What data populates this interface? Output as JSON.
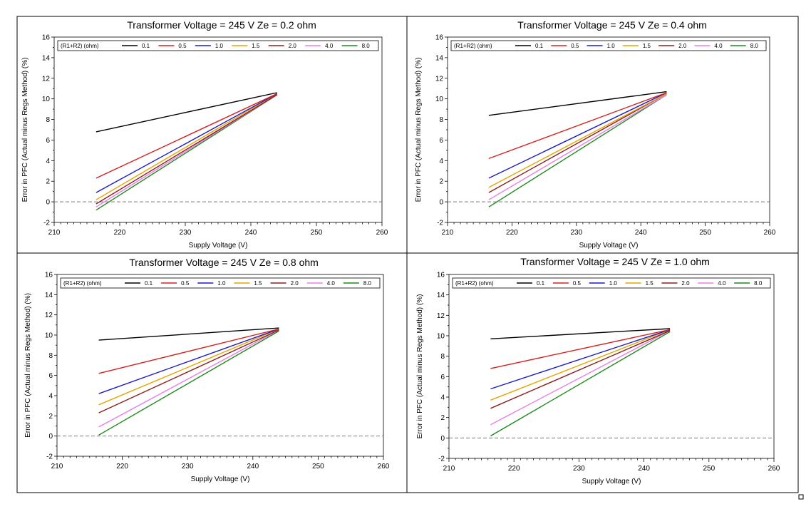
{
  "chart_data": [
    {
      "type": "line",
      "title": "Transformer Voltage  =  245  V      Ze  =  0.2  ohm",
      "xlabel": "Supply Voltage (V)",
      "ylabel": "Error  in  PFC  (Actual minus Regs Method)  (%)",
      "xlim": [
        210,
        260
      ],
      "ylim": [
        -2,
        16
      ],
      "xticks": [
        210,
        220,
        230,
        240,
        250,
        260
      ],
      "yticks": [
        -2,
        0,
        2,
        4,
        6,
        8,
        10,
        12,
        14,
        16
      ],
      "reference_line_y": 0,
      "legend_title": "(R1+R2)  (ohm)",
      "legend_position": "top",
      "x": [
        216.4,
        244
      ],
      "series": [
        {
          "name": "0.1",
          "color": "#000000",
          "values": [
            6.8,
            10.6
          ]
        },
        {
          "name": "0.5",
          "color": "#d62020",
          "values": [
            2.3,
            10.5
          ]
        },
        {
          "name": "1.0",
          "color": "#1c1cc8",
          "values": [
            0.9,
            10.5
          ]
        },
        {
          "name": "1.5",
          "color": "#e6a400",
          "values": [
            0.2,
            10.5
          ]
        },
        {
          "name": "2.0",
          "color": "#8b2020",
          "values": [
            -0.2,
            10.4
          ]
        },
        {
          "name": "4.0",
          "color": "#e87ee8",
          "values": [
            -0.5,
            10.4
          ]
        },
        {
          "name": "8.0",
          "color": "#1c8a1c",
          "values": [
            -0.8,
            10.4
          ]
        }
      ]
    },
    {
      "type": "line",
      "title": "Transformer Voltage  =  245  V      Ze  =  0.4  ohm",
      "xlabel": "Supply Voltage (V)",
      "ylabel": "Error  in  PFC  (Actual minus Regs Method)  (%)",
      "xlim": [
        210,
        260
      ],
      "ylim": [
        -2,
        16
      ],
      "xticks": [
        210,
        220,
        230,
        240,
        250,
        260
      ],
      "yticks": [
        -2,
        0,
        2,
        4,
        6,
        8,
        10,
        12,
        14,
        16
      ],
      "reference_line_y": 0,
      "legend_title": "(R1+R2)  (ohm)",
      "legend_position": "top",
      "x": [
        216.4,
        244
      ],
      "series": [
        {
          "name": "0.1",
          "color": "#000000",
          "values": [
            8.4,
            10.7
          ]
        },
        {
          "name": "0.5",
          "color": "#d62020",
          "values": [
            4.2,
            10.6
          ]
        },
        {
          "name": "1.0",
          "color": "#1c1cc8",
          "values": [
            2.3,
            10.6
          ]
        },
        {
          "name": "1.5",
          "color": "#e6a400",
          "values": [
            1.4,
            10.5
          ]
        },
        {
          "name": "2.0",
          "color": "#8b2020",
          "values": [
            0.9,
            10.5
          ]
        },
        {
          "name": "4.0",
          "color": "#e87ee8",
          "values": [
            0.2,
            10.4
          ]
        },
        {
          "name": "8.0",
          "color": "#1c8a1c",
          "values": [
            -0.5,
            10.4
          ]
        }
      ]
    },
    {
      "type": "line",
      "title": "Transformer Voltage  =  245  V      Ze  =  0.8  ohm",
      "xlabel": "Supply Voltage (V)",
      "ylabel": "Error  in  PFC  (Actual minus Regs Method)  (%)",
      "xlim": [
        210,
        260
      ],
      "ylim": [
        -2,
        16
      ],
      "xticks": [
        210,
        220,
        230,
        240,
        250,
        260
      ],
      "yticks": [
        -2,
        0,
        2,
        4,
        6,
        8,
        10,
        12,
        14,
        16
      ],
      "reference_line_y": 0,
      "legend_title": "(R1+R2)  (ohm)",
      "legend_position": "top",
      "x": [
        216.4,
        244
      ],
      "series": [
        {
          "name": "0.1",
          "color": "#000000",
          "values": [
            9.5,
            10.7
          ]
        },
        {
          "name": "0.5",
          "color": "#d62020",
          "values": [
            6.2,
            10.6
          ]
        },
        {
          "name": "1.0",
          "color": "#1c1cc8",
          "values": [
            4.2,
            10.6
          ]
        },
        {
          "name": "1.5",
          "color": "#e6a400",
          "values": [
            3.1,
            10.6
          ]
        },
        {
          "name": "2.0",
          "color": "#8b2020",
          "values": [
            2.3,
            10.5
          ]
        },
        {
          "name": "4.0",
          "color": "#e87ee8",
          "values": [
            0.9,
            10.5
          ]
        },
        {
          "name": "8.0",
          "color": "#1c8a1c",
          "values": [
            0.1,
            10.4
          ]
        }
      ]
    },
    {
      "type": "line",
      "title": "Transformer Voltage  =  245  V      Ze  =  1.0  ohm",
      "xlabel": "Supply Voltage (V)",
      "ylabel": "Error  in  PFC  (Actual minus Regs Method)  (%)",
      "xlim": [
        210,
        260
      ],
      "ylim": [
        -2,
        16
      ],
      "xticks": [
        210,
        220,
        230,
        240,
        250,
        260
      ],
      "yticks": [
        -2,
        0,
        2,
        4,
        6,
        8,
        10,
        12,
        14,
        16
      ],
      "reference_line_y": 0,
      "legend_title": "(R1+R2)  (ohm)",
      "legend_position": "top",
      "x": [
        216.4,
        244
      ],
      "series": [
        {
          "name": "0.1",
          "color": "#000000",
          "values": [
            9.7,
            10.7
          ]
        },
        {
          "name": "0.5",
          "color": "#d62020",
          "values": [
            6.8,
            10.6
          ]
        },
        {
          "name": "1.0",
          "color": "#1c1cc8",
          "values": [
            4.8,
            10.6
          ]
        },
        {
          "name": "1.5",
          "color": "#e6a400",
          "values": [
            3.7,
            10.6
          ]
        },
        {
          "name": "2.0",
          "color": "#8b2020",
          "values": [
            2.9,
            10.5
          ]
        },
        {
          "name": "4.0",
          "color": "#e87ee8",
          "values": [
            1.3,
            10.5
          ]
        },
        {
          "name": "8.0",
          "color": "#1c8a1c",
          "values": [
            0.2,
            10.4
          ]
        }
      ]
    }
  ]
}
